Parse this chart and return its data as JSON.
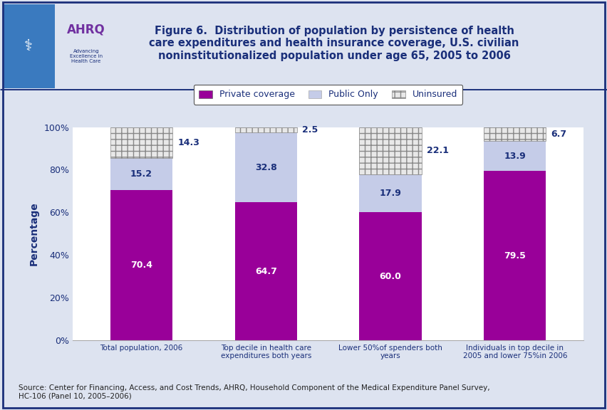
{
  "categories": [
    "Total population, 2006",
    "Top decile in health care\nexpenditures both years",
    "Lower 50%of spenders both\nyears",
    "Individuals in top decile in\n2005 and lower 75%in 2006"
  ],
  "private": [
    70.4,
    64.7,
    60.0,
    79.5
  ],
  "public": [
    15.2,
    32.8,
    17.9,
    13.9
  ],
  "uninsured": [
    14.3,
    2.5,
    22.1,
    6.7
  ],
  "private_color": "#990099",
  "public_color": "#c5cce8",
  "uninsured_facecolor": "#e8e8e8",
  "uninsured_edgecolor": "#888888",
  "uninsured_hatch": "++",
  "title": "Figure 6.  Distribution of population by persistence of health\ncare expenditures and health insurance coverage, U.S. civilian\nnoninstitutionalized population under age 65, 2005 to 2006",
  "ylabel": "Percentage",
  "source": "Source: Center for Financing, Access, and Cost Trends, AHRQ, Household Component of the Medical Expenditure Panel Survey,\nHC-106 (Panel 10, 2005–2006)",
  "legend_labels": [
    "Private coverage",
    "Public Only",
    "Uninsured"
  ],
  "title_color": "#1a2f7a",
  "axis_label_color": "#1a2f7a",
  "tick_label_color": "#1a2f7a",
  "value_label_color_private": "#ffffff",
  "value_label_color_other": "#1a2f7a",
  "background_color": "#dde3f0",
  "plot_bg": "#ffffff",
  "border_color": "#1a2f7a",
  "ylim": [
    0,
    100
  ],
  "bar_width": 0.5,
  "header_bg": "#ffffff"
}
